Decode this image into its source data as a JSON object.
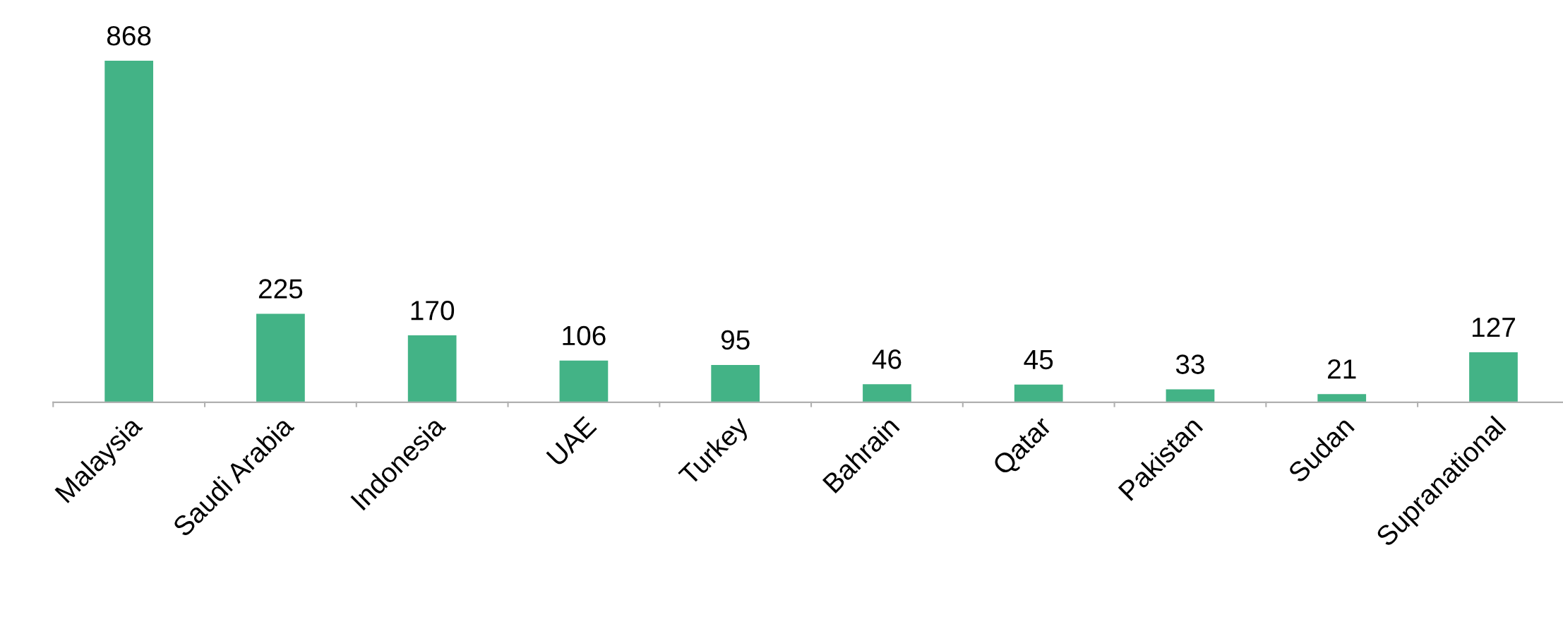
{
  "chart_data": {
    "type": "bar",
    "categories": [
      "Malaysia",
      "Saudi Arabia",
      "Indonesia",
      "UAE",
      "Turkey",
      "Bahrain",
      "Qatar",
      "Pakistan",
      "Sudan",
      "Supranational"
    ],
    "values": [
      868,
      225,
      170,
      106,
      95,
      46,
      45,
      33,
      21,
      127
    ],
    "color": "#43b386",
    "data_labels": true,
    "tick_labels": "x",
    "grid": false,
    "legend": false
  }
}
